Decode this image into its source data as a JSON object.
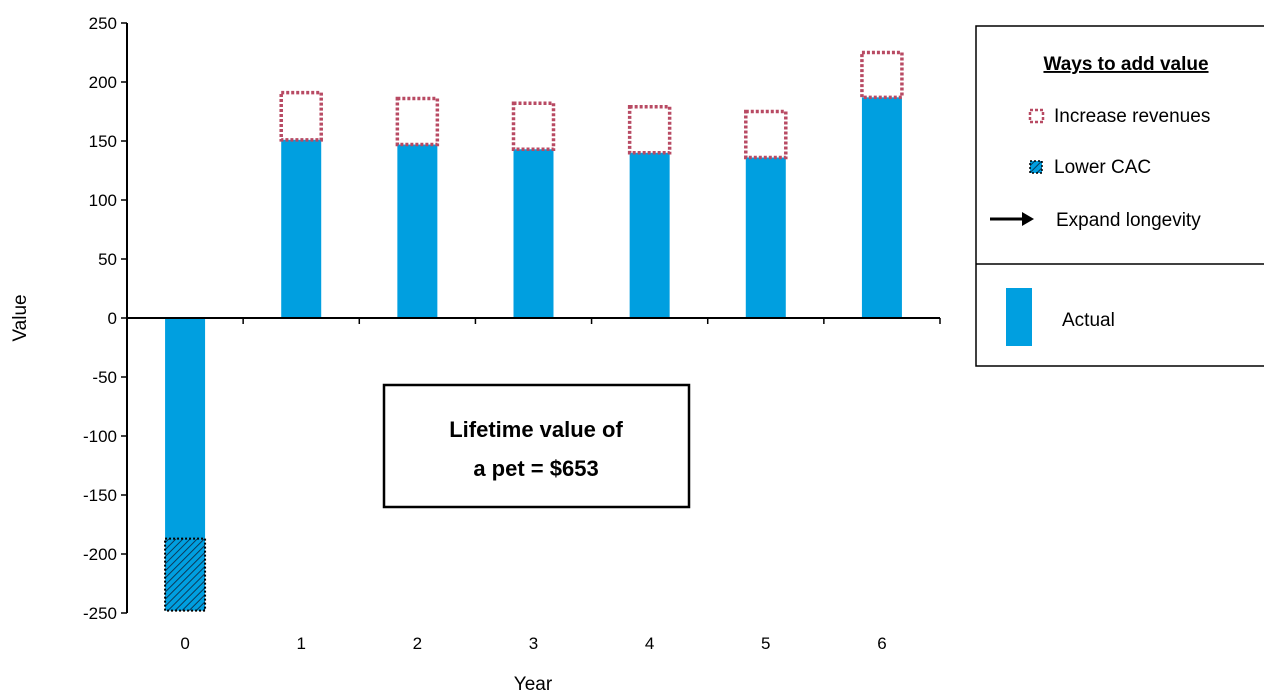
{
  "chart_data": {
    "type": "bar",
    "xlabel": "Year",
    "ylabel": "Value",
    "categories": [
      "0",
      "1",
      "2",
      "3",
      "4",
      "5",
      "6"
    ],
    "ylim": [
      -250,
      250
    ],
    "yticks": [
      250,
      200,
      150,
      100,
      50,
      0,
      -50,
      -100,
      -150,
      -200,
      -250
    ],
    "series": [
      {
        "name": "Actual",
        "values": [
          -187,
          151,
          147,
          143,
          140,
          136,
          187
        ]
      },
      {
        "name": "Increase revenues",
        "values": [
          0,
          40,
          39,
          39,
          39,
          39,
          38
        ]
      },
      {
        "name": "Lower CAC",
        "values": [
          -61,
          0,
          0,
          0,
          0,
          0,
          0
        ]
      }
    ],
    "annotation": "Lifetime value of a pet = $653",
    "legend": {
      "title": "Ways to add value",
      "items": [
        "Increase revenues",
        "Lower CAC",
        "Expand longevity"
      ],
      "actual": "Actual",
      "placement": "right"
    },
    "colors": {
      "actual": "#009fe0",
      "increase": "#b84a63",
      "cac_hatch": "#009fe0",
      "axis": "#000000"
    }
  }
}
